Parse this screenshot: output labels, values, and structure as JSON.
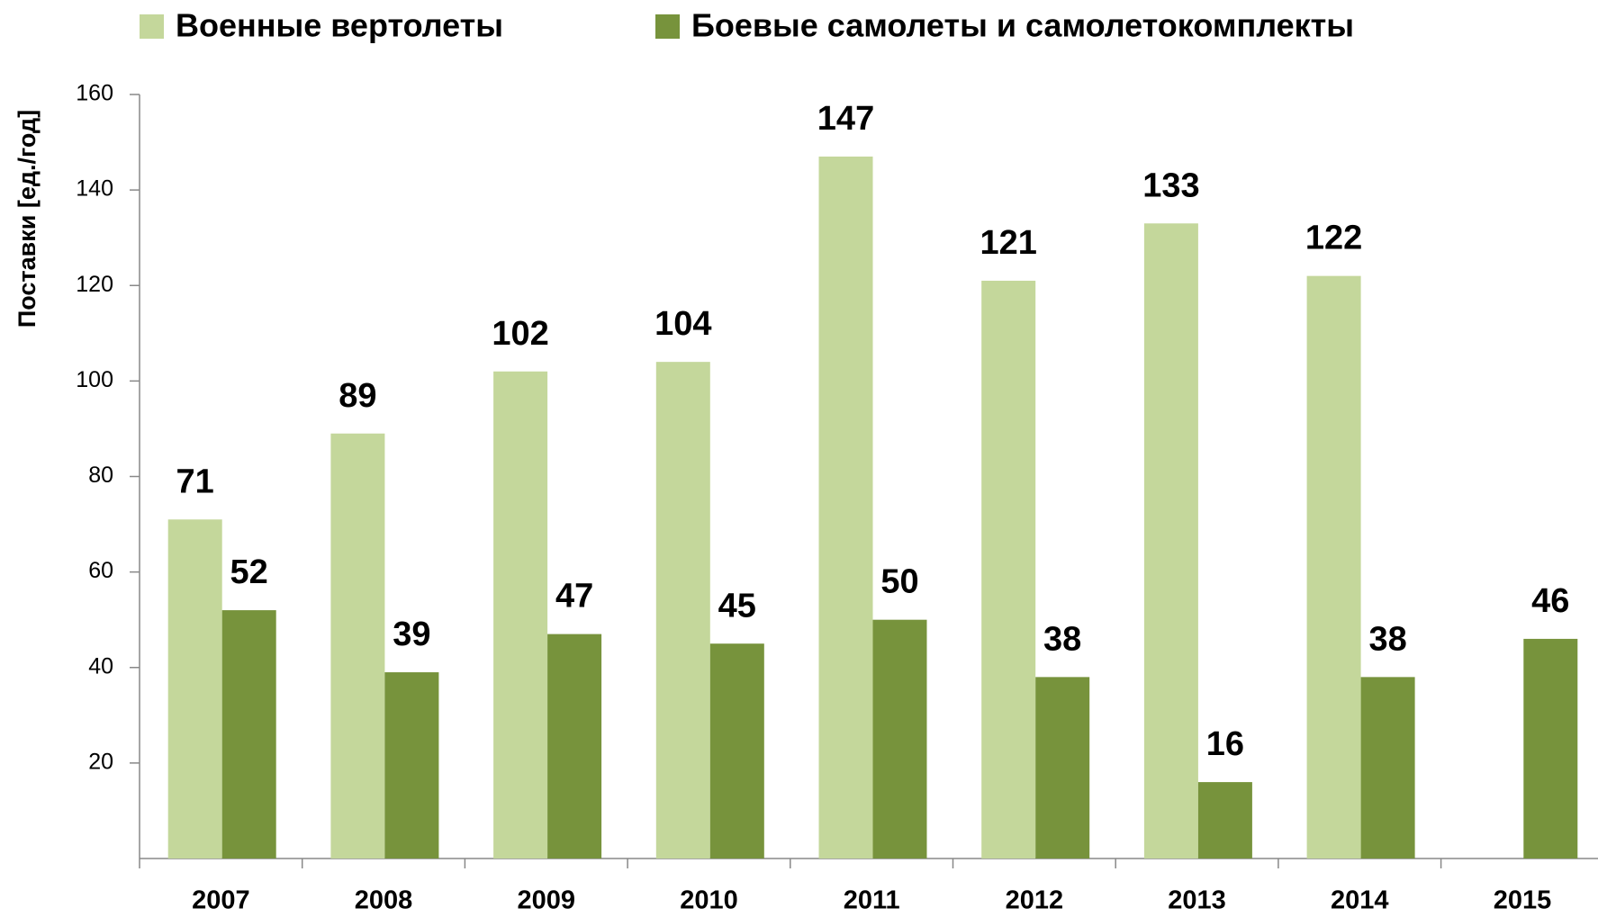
{
  "chart_data": {
    "type": "bar",
    "y_label": "Поставки [ед./год]",
    "categories": [
      "2007",
      "2008",
      "2009",
      "2010",
      "2011",
      "2012",
      "2013",
      "2014",
      "2015"
    ],
    "series": [
      {
        "name": "Военные вертолеты",
        "color": "#c4d79b",
        "values": [
          71,
          89,
          102,
          104,
          147,
          121,
          133,
          122,
          null
        ]
      },
      {
        "name": "Боевые самолеты и самолетокомплекты",
        "color": "#77933c",
        "values": [
          52,
          39,
          47,
          45,
          50,
          38,
          16,
          38,
          46
        ]
      }
    ],
    "ylim": [
      0,
      160
    ],
    "yticks": [
      20,
      40,
      60,
      80,
      100,
      120,
      140,
      160
    ],
    "grid": false,
    "legend": "top"
  }
}
